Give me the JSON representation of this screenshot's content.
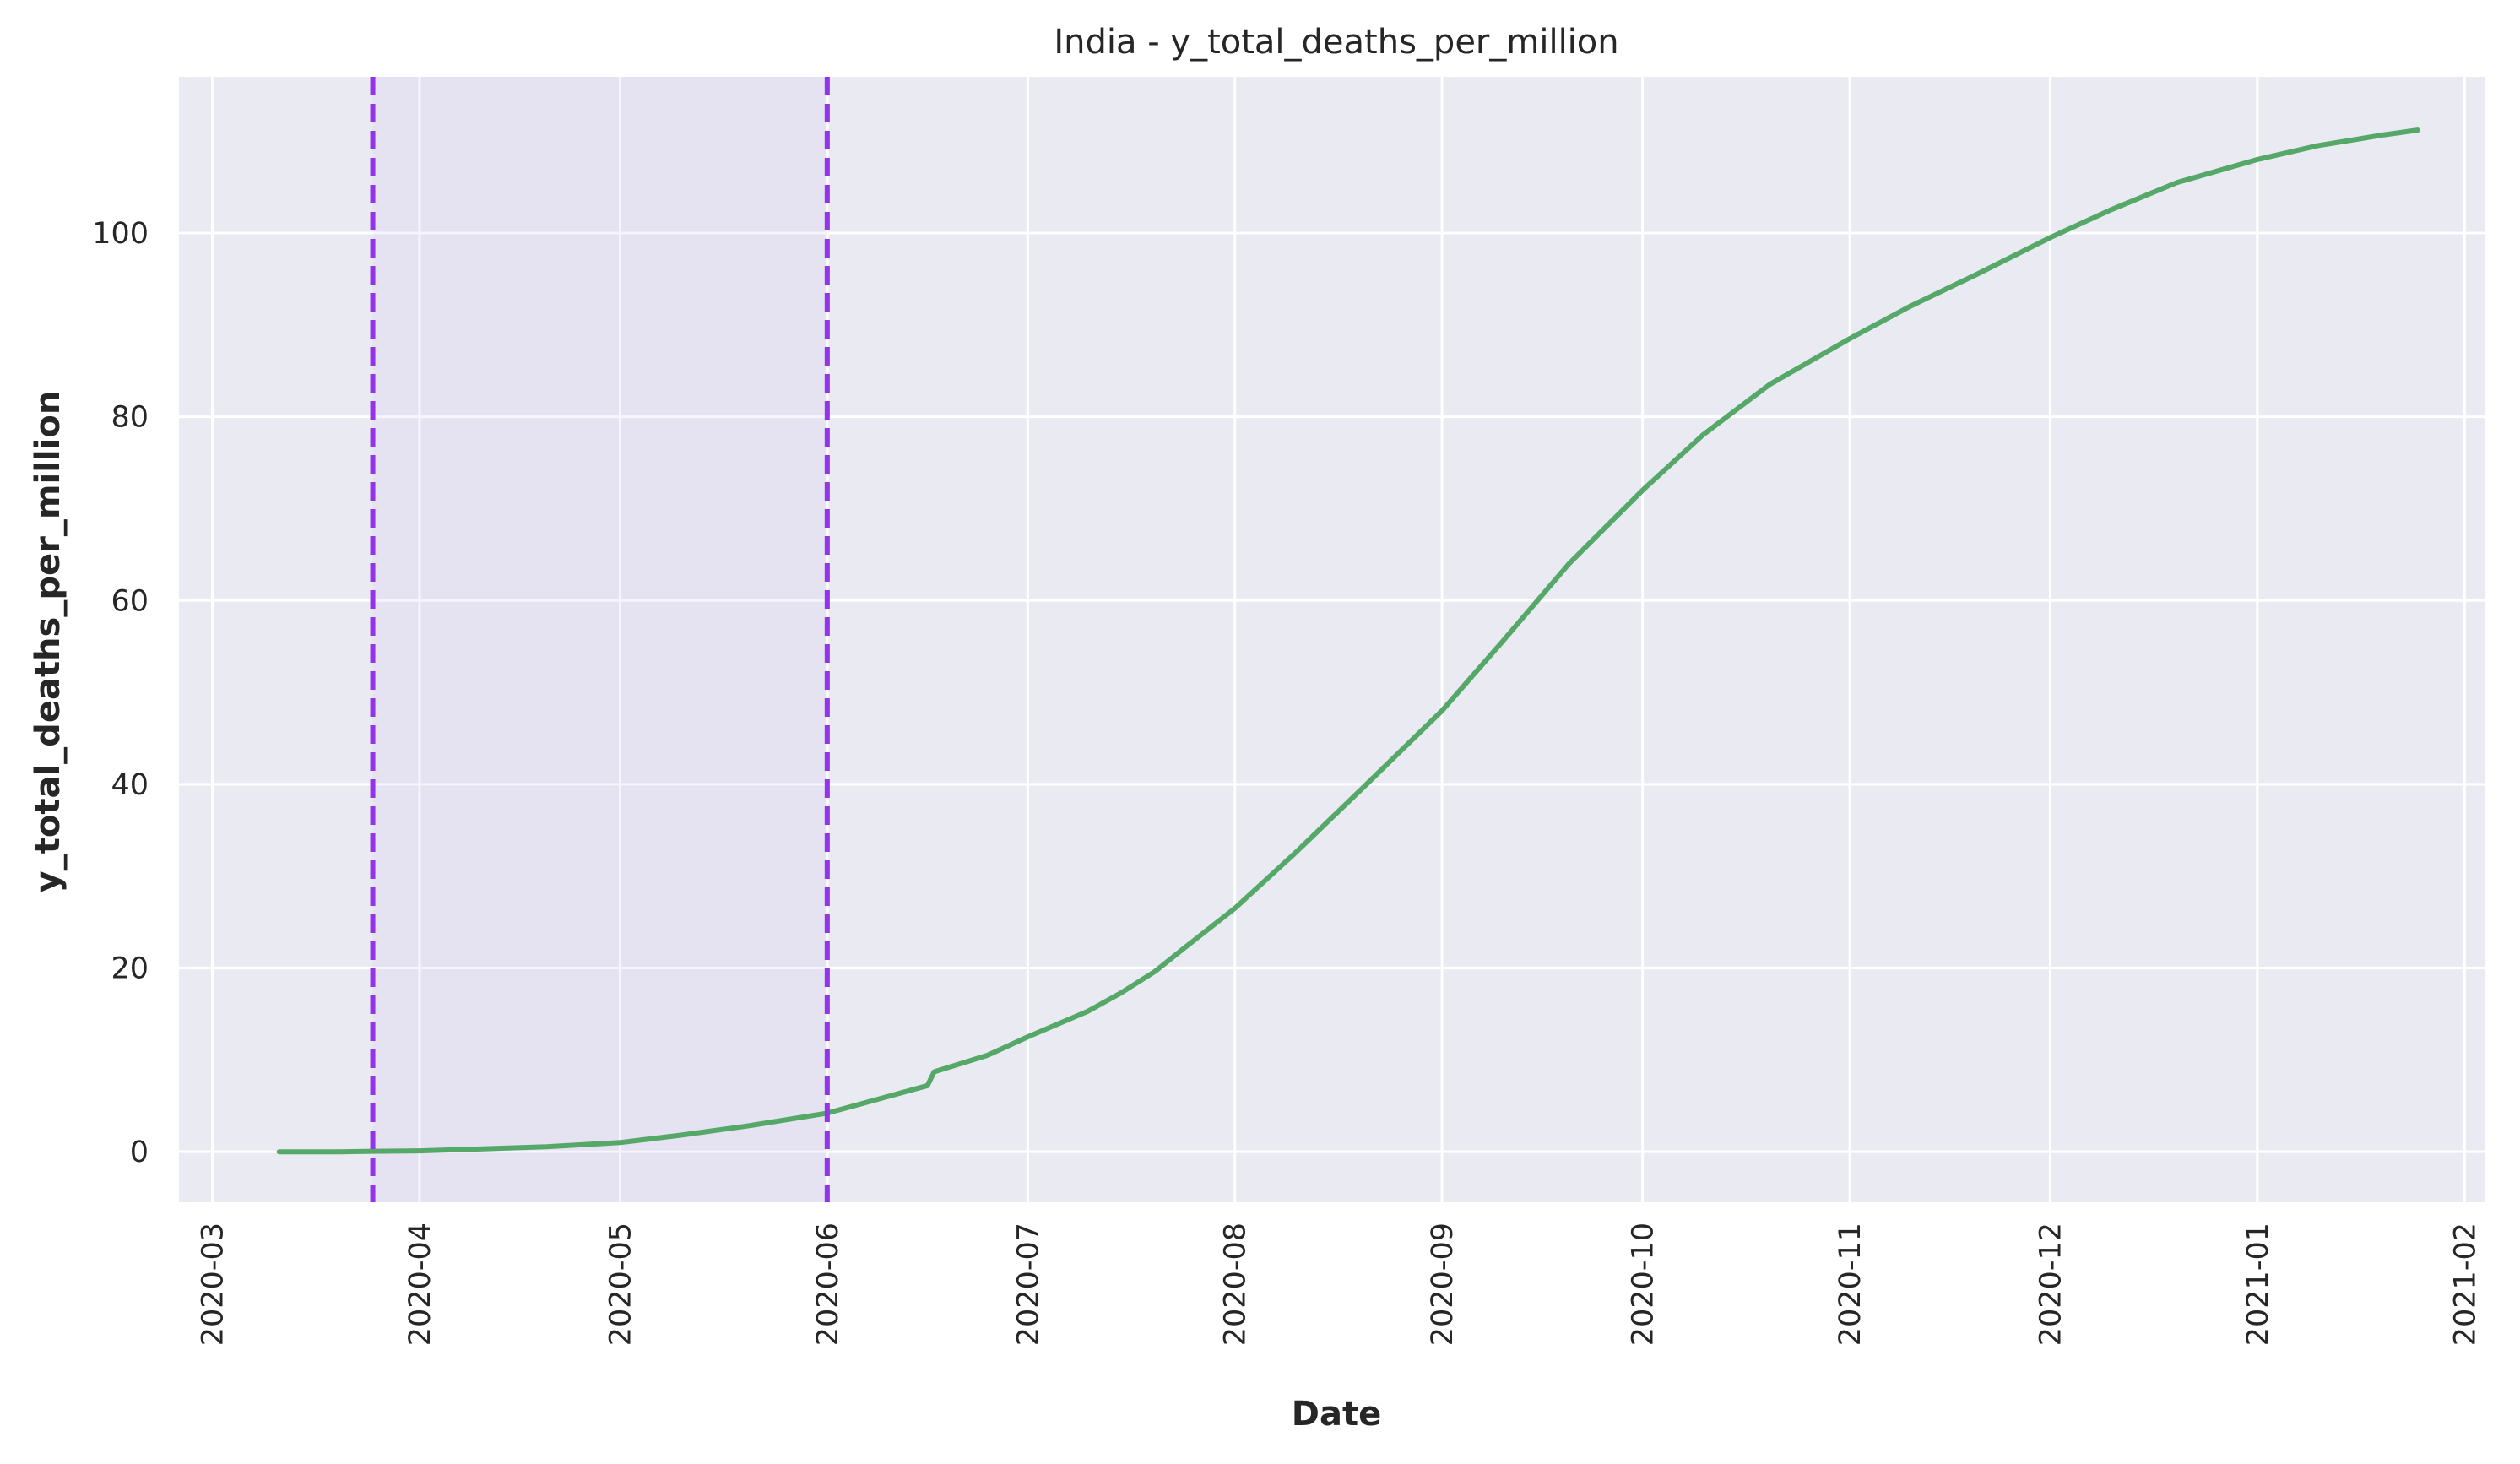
{
  "chart_data": {
    "type": "line",
    "title": "India - y_total_deaths_per_million",
    "xlabel": "Date",
    "ylabel": "y_total_deaths_per_million",
    "x_ticks": [
      "2020-03",
      "2020-04",
      "2020-05",
      "2020-06",
      "2020-07",
      "2020-08",
      "2020-09",
      "2020-10",
      "2020-11",
      "2020-12",
      "2021-01",
      "2021-02"
    ],
    "y_ticks": [
      0,
      20,
      40,
      60,
      80,
      100
    ],
    "xlim": [
      "2020-02-25",
      "2021-02-04"
    ],
    "ylim": [
      -5.5,
      117
    ],
    "grid": true,
    "shaded_span": {
      "start": "2020-03-25",
      "end": "2020-06-01",
      "color": "#c6b4f0"
    },
    "vlines": [
      {
        "x": "2020-03-25",
        "color": "#9333ea",
        "style": "dashed"
      },
      {
        "x": "2020-06-01",
        "color": "#9333ea",
        "style": "dashed"
      }
    ],
    "series": [
      {
        "color": "#55a868",
        "x": [
          "2020-03-11",
          "2020-03-20",
          "2020-03-25",
          "2020-04-01",
          "2020-04-10",
          "2020-04-20",
          "2020-05-01",
          "2020-05-10",
          "2020-05-20",
          "2020-06-01",
          "2020-06-10",
          "2020-06-16",
          "2020-06-17",
          "2020-06-25",
          "2020-07-01",
          "2020-07-10",
          "2020-07-15",
          "2020-07-20",
          "2020-07-25",
          "2020-08-01",
          "2020-08-10",
          "2020-08-20",
          "2020-09-01",
          "2020-09-10",
          "2020-09-20",
          "2020-10-01",
          "2020-10-10",
          "2020-10-20",
          "2020-11-01",
          "2020-11-10",
          "2020-11-20",
          "2020-12-01",
          "2020-12-10",
          "2020-12-20",
          "2021-01-01",
          "2021-01-10",
          "2021-01-20",
          "2021-01-25"
        ],
        "y": [
          0,
          0,
          0.05,
          0.1,
          0.3,
          0.55,
          1.0,
          1.8,
          2.8,
          4.2,
          6.0,
          7.2,
          8.7,
          10.5,
          12.5,
          15.3,
          17.3,
          19.6,
          22.5,
          26.5,
          32.5,
          39.5,
          48.0,
          55.5,
          64.0,
          72.0,
          78.0,
          83.5,
          88.5,
          92.0,
          95.5,
          99.5,
          102.5,
          105.5,
          108.0,
          109.5,
          110.7,
          111.2
        ]
      }
    ]
  }
}
